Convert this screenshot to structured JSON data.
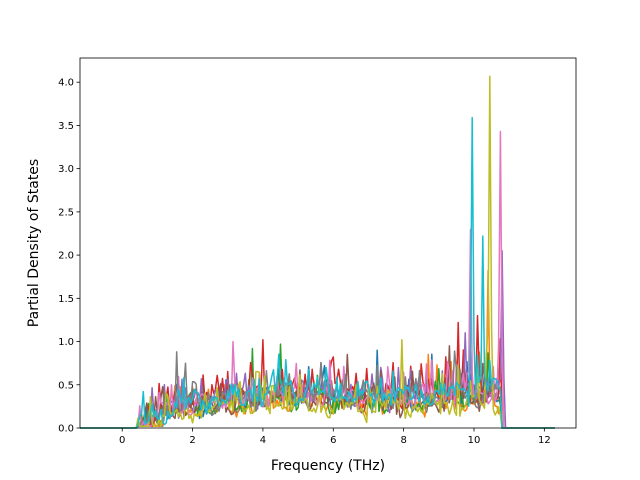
{
  "chart_data": {
    "type": "line",
    "title": "",
    "xlabel": "Frequency (THz)",
    "ylabel": "Partial Density of States",
    "xlim": [
      -1.2,
      12.9
    ],
    "ylim": [
      0.0,
      4.28
    ],
    "xticks": [
      0,
      2,
      4,
      6,
      8,
      10,
      12
    ],
    "yticks": [
      0.0,
      0.5,
      1.0,
      1.5,
      2.0,
      2.5,
      3.0,
      3.5,
      4.0
    ],
    "xtick_labels": [
      "0",
      "2",
      "4",
      "6",
      "8",
      "10",
      "12"
    ],
    "ytick_labels": [
      "0.0",
      "0.5",
      "1.0",
      "1.5",
      "2.0",
      "2.5",
      "3.0",
      "3.5",
      "4.0"
    ],
    "grid": false,
    "legend": "none",
    "x_range": [
      -1.2,
      12.3
    ],
    "band_edges": [
      0.45,
      10.8
    ],
    "series_count": 10,
    "colors": [
      "#1f77b4",
      "#ff7f0e",
      "#2ca02c",
      "#d62728",
      "#9467bd",
      "#8c564b",
      "#e377c2",
      "#7f7f7f",
      "#bcbd22",
      "#17becf"
    ],
    "peaks": [
      {
        "x": 9.96,
        "y": 3.59,
        "color": "#17becf"
      },
      {
        "x": 10.45,
        "y": 4.07,
        "color": "#bcbd22"
      },
      {
        "x": 10.73,
        "y": 3.43,
        "color": "#e377c2"
      },
      {
        "x": 10.25,
        "y": 2.22,
        "color": "#17becf"
      },
      {
        "x": 10.78,
        "y": 2.05,
        "color": "#9467bd"
      },
      {
        "x": 10.38,
        "y": 1.82,
        "color": "#ff7f0e"
      },
      {
        "x": 9.9,
        "y": 2.3,
        "color": "#e377c2"
      },
      {
        "x": 10.1,
        "y": 1.3,
        "color": "#d62728"
      },
      {
        "x": 9.55,
        "y": 1.22,
        "color": "#d62728"
      },
      {
        "x": 9.75,
        "y": 1.1,
        "color": "#9467bd"
      },
      {
        "x": 1.55,
        "y": 0.88,
        "color": "#7f7f7f"
      },
      {
        "x": 1.82,
        "y": 0.75,
        "color": "#7f7f7f"
      },
      {
        "x": 3.15,
        "y": 1.0,
        "color": "#e377c2"
      },
      {
        "x": 4.0,
        "y": 1.02,
        "color": "#d62728"
      },
      {
        "x": 4.5,
        "y": 0.97,
        "color": "#2ca02c"
      },
      {
        "x": 3.7,
        "y": 0.92,
        "color": "#2ca02c"
      },
      {
        "x": 7.25,
        "y": 0.9,
        "color": "#1f77b4"
      },
      {
        "x": 6.4,
        "y": 0.85,
        "color": "#8c564b"
      },
      {
        "x": 7.95,
        "y": 1.02,
        "color": "#bcbd22"
      },
      {
        "x": 8.7,
        "y": 0.85,
        "color": "#ff7f0e"
      },
      {
        "x": 9.3,
        "y": 0.95,
        "color": "#8c564b"
      }
    ]
  }
}
